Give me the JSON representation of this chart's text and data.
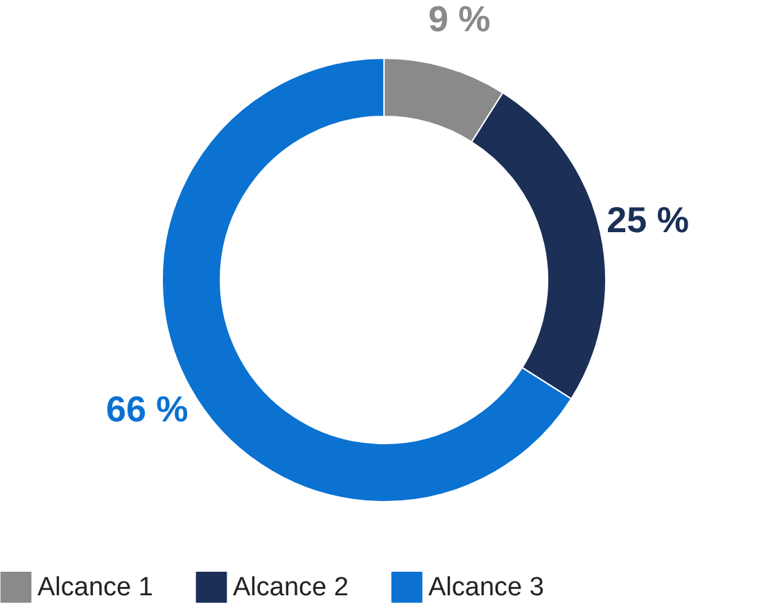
{
  "chart_data": {
    "type": "donut",
    "categories": [
      "Alcance 1",
      "Alcance 2",
      "Alcance 3"
    ],
    "values": [
      9,
      25,
      66
    ],
    "colors": [
      "#8a8a8c",
      "#1b2f57",
      "#0b72d1"
    ],
    "value_labels": [
      "9 %",
      "25 %",
      "66 %"
    ],
    "legend": "bottom"
  }
}
